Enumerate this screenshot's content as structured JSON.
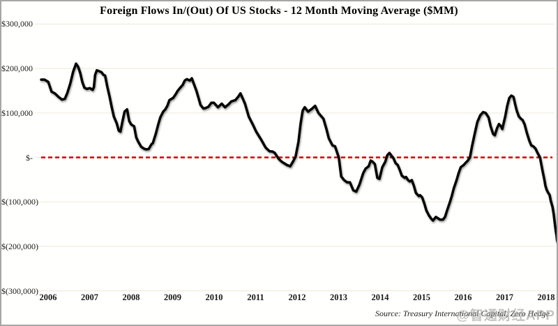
{
  "title": "Foreign Flows In/(Out) Of US Stocks  - 12 Month Moving Average ($MM)",
  "source_note": "Source: Treasury International Capital, Zero Hedge",
  "watermark": "@智通财经APP",
  "colors": {
    "line": "#060606",
    "zero_line": "#d40000",
    "gridline": "#f0ecdd",
    "frame_border": "#a7a7a7",
    "text": "#1a1a1a"
  },
  "chart_data": {
    "type": "line",
    "title": "Foreign Flows In/(Out) Of US Stocks  - 12 Month Moving Average ($MM)",
    "xlabel": "",
    "ylabel": "",
    "grid": true,
    "legend": null,
    "xlim": [
      2005.8,
      2018.45
    ],
    "ylim": [
      -300000,
      300000
    ],
    "x_tick_labels": [
      "2006",
      "2007",
      "2008",
      "2009",
      "2010",
      "2011",
      "2012",
      "2013",
      "2014",
      "2015",
      "2016",
      "2017",
      "2018"
    ],
    "y_ticks": [
      {
        "value": 300000,
        "label": "$300,000"
      },
      {
        "value": 200000,
        "label": "$200,000"
      },
      {
        "value": 100000,
        "label": "$100,000"
      },
      {
        "value": 0,
        "label": "$-"
      },
      {
        "value": -100000,
        "label": "$(100,000)"
      },
      {
        "value": -200000,
        "label": "$(200,000)"
      },
      {
        "value": -300000,
        "label": "$(300,000)"
      }
    ],
    "zero_line": {
      "value": 0,
      "style": "dashed",
      "color": "#d40000"
    },
    "series": [
      {
        "name": "Foreign flows into US stocks, 12-month moving average ($MM)",
        "points": [
          [
            2005.9,
            175000
          ],
          [
            2005.98,
            175000
          ],
          [
            2006.07,
            170000
          ],
          [
            2006.15,
            148000
          ],
          [
            2006.23,
            144000
          ],
          [
            2006.32,
            136000
          ],
          [
            2006.4,
            130000
          ],
          [
            2006.47,
            132000
          ],
          [
            2006.53,
            145000
          ],
          [
            2006.6,
            166000
          ],
          [
            2006.67,
            193000
          ],
          [
            2006.74,
            211000
          ],
          [
            2006.79,
            204000
          ],
          [
            2006.84,
            190000
          ],
          [
            2006.89,
            170000
          ],
          [
            2006.94,
            157000
          ],
          [
            2007.0,
            154000
          ],
          [
            2007.07,
            156000
          ],
          [
            2007.14,
            152000
          ],
          [
            2007.17,
            158000
          ],
          [
            2007.2,
            186000
          ],
          [
            2007.24,
            196000
          ],
          [
            2007.3,
            194000
          ],
          [
            2007.35,
            192000
          ],
          [
            2007.4,
            186000
          ],
          [
            2007.44,
            184000
          ],
          [
            2007.49,
            160000
          ],
          [
            2007.55,
            136000
          ],
          [
            2007.6,
            113000
          ],
          [
            2007.65,
            92000
          ],
          [
            2007.72,
            77000
          ],
          [
            2007.77,
            60000
          ],
          [
            2007.81,
            58000
          ],
          [
            2007.86,
            82000
          ],
          [
            2007.91,
            103000
          ],
          [
            2007.97,
            108000
          ],
          [
            2008.02,
            82000
          ],
          [
            2008.07,
            74000
          ],
          [
            2008.14,
            70000
          ],
          [
            2008.19,
            45000
          ],
          [
            2008.24,
            35000
          ],
          [
            2008.31,
            24000
          ],
          [
            2008.39,
            19000
          ],
          [
            2008.44,
            18000
          ],
          [
            2008.49,
            19000
          ],
          [
            2008.56,
            30000
          ],
          [
            2008.59,
            32000
          ],
          [
            2008.66,
            53000
          ],
          [
            2008.72,
            74000
          ],
          [
            2008.77,
            90000
          ],
          [
            2008.84,
            103000
          ],
          [
            2008.89,
            108000
          ],
          [
            2008.94,
            116000
          ],
          [
            2008.99,
            129000
          ],
          [
            2009.08,
            134000
          ],
          [
            2009.14,
            142000
          ],
          [
            2009.19,
            150000
          ],
          [
            2009.26,
            158000
          ],
          [
            2009.31,
            163000
          ],
          [
            2009.36,
            173000
          ],
          [
            2009.41,
            176000
          ],
          [
            2009.48,
            173000
          ],
          [
            2009.53,
            178000
          ],
          [
            2009.58,
            165000
          ],
          [
            2009.64,
            150000
          ],
          [
            2009.69,
            134000
          ],
          [
            2009.74,
            118000
          ],
          [
            2009.81,
            110000
          ],
          [
            2009.86,
            111000
          ],
          [
            2009.93,
            114000
          ],
          [
            2010.0,
            123000
          ],
          [
            2010.06,
            123000
          ],
          [
            2010.16,
            113000
          ],
          [
            2010.25,
            121000
          ],
          [
            2010.33,
            113000
          ],
          [
            2010.41,
            119000
          ],
          [
            2010.48,
            126000
          ],
          [
            2010.58,
            129000
          ],
          [
            2010.65,
            137000
          ],
          [
            2010.7,
            144000
          ],
          [
            2010.76,
            132000
          ],
          [
            2010.81,
            121000
          ],
          [
            2010.9,
            92000
          ],
          [
            2011.0,
            74000
          ],
          [
            2011.08,
            58000
          ],
          [
            2011.2,
            40000
          ],
          [
            2011.31,
            22000
          ],
          [
            2011.4,
            14000
          ],
          [
            2011.48,
            13000
          ],
          [
            2011.53,
            10000
          ],
          [
            2011.62,
            -3000
          ],
          [
            2011.7,
            -10000
          ],
          [
            2011.82,
            -17000
          ],
          [
            2011.9,
            -20000
          ],
          [
            2011.97,
            -9000
          ],
          [
            2012.03,
            2000
          ],
          [
            2012.1,
            35000
          ],
          [
            2012.15,
            75000
          ],
          [
            2012.2,
            105000
          ],
          [
            2012.25,
            113000
          ],
          [
            2012.33,
            103000
          ],
          [
            2012.43,
            110000
          ],
          [
            2012.5,
            116000
          ],
          [
            2012.58,
            100000
          ],
          [
            2012.7,
            87000
          ],
          [
            2012.77,
            65000
          ],
          [
            2012.83,
            43000
          ],
          [
            2012.92,
            27000
          ],
          [
            2012.98,
            25000
          ],
          [
            2013.07,
            0
          ],
          [
            2013.13,
            -43000
          ],
          [
            2013.2,
            -51000
          ],
          [
            2013.27,
            -56000
          ],
          [
            2013.34,
            -56000
          ],
          [
            2013.42,
            -74000
          ],
          [
            2013.49,
            -77000
          ],
          [
            2013.57,
            -61000
          ],
          [
            2013.66,
            -35000
          ],
          [
            2013.72,
            -25000
          ],
          [
            2013.79,
            -20000
          ],
          [
            2013.84,
            -7000
          ],
          [
            2013.89,
            -10000
          ],
          [
            2013.94,
            -15000
          ],
          [
            2014.0,
            -46000
          ],
          [
            2014.05,
            -48000
          ],
          [
            2014.12,
            -22000
          ],
          [
            2014.19,
            -10000
          ],
          [
            2014.24,
            5000
          ],
          [
            2014.29,
            10000
          ],
          [
            2014.34,
            4000
          ],
          [
            2014.39,
            -2000
          ],
          [
            2014.44,
            -13000
          ],
          [
            2014.49,
            -17000
          ],
          [
            2014.54,
            -28000
          ],
          [
            2014.59,
            -41000
          ],
          [
            2014.66,
            -46000
          ],
          [
            2014.69,
            -44000
          ],
          [
            2014.74,
            -51000
          ],
          [
            2014.78,
            -54000
          ],
          [
            2014.83,
            -51000
          ],
          [
            2014.88,
            -64000
          ],
          [
            2014.93,
            -80000
          ],
          [
            2015.0,
            -87000
          ],
          [
            2015.03,
            -85000
          ],
          [
            2015.08,
            -90000
          ],
          [
            2015.13,
            -103000
          ],
          [
            2015.18,
            -119000
          ],
          [
            2015.24,
            -130000
          ],
          [
            2015.29,
            -137000
          ],
          [
            2015.34,
            -142000
          ],
          [
            2015.41,
            -134000
          ],
          [
            2015.46,
            -137000
          ],
          [
            2015.51,
            -140000
          ],
          [
            2015.58,
            -140000
          ],
          [
            2015.63,
            -134000
          ],
          [
            2015.68,
            -119000
          ],
          [
            2015.74,
            -103000
          ],
          [
            2015.79,
            -88000
          ],
          [
            2015.84,
            -70000
          ],
          [
            2015.91,
            -51000
          ],
          [
            2015.96,
            -35000
          ],
          [
            2016.01,
            -22000
          ],
          [
            2016.08,
            -17000
          ],
          [
            2016.13,
            -12000
          ],
          [
            2016.18,
            -7000
          ],
          [
            2016.23,
            0
          ],
          [
            2016.28,
            25000
          ],
          [
            2016.35,
            55000
          ],
          [
            2016.41,
            80000
          ],
          [
            2016.48,
            95000
          ],
          [
            2016.55,
            102000
          ],
          [
            2016.61,
            100000
          ],
          [
            2016.68,
            90000
          ],
          [
            2016.73,
            70000
          ],
          [
            2016.79,
            53000
          ],
          [
            2016.83,
            50000
          ],
          [
            2016.88,
            65000
          ],
          [
            2016.93,
            75000
          ],
          [
            2016.98,
            70000
          ],
          [
            2017.01,
            64000
          ],
          [
            2017.08,
            92000
          ],
          [
            2017.13,
            116000
          ],
          [
            2017.18,
            134000
          ],
          [
            2017.23,
            139000
          ],
          [
            2017.28,
            136000
          ],
          [
            2017.33,
            116000
          ],
          [
            2017.36,
            105000
          ],
          [
            2017.41,
            92000
          ],
          [
            2017.46,
            87000
          ],
          [
            2017.5,
            84000
          ],
          [
            2017.55,
            74000
          ],
          [
            2017.6,
            56000
          ],
          [
            2017.66,
            38000
          ],
          [
            2017.71,
            27000
          ],
          [
            2017.76,
            25000
          ],
          [
            2017.81,
            20000
          ],
          [
            2017.86,
            10000
          ],
          [
            2017.92,
            0
          ],
          [
            2017.95,
            -15000
          ],
          [
            2017.98,
            -30000
          ],
          [
            2018.02,
            -48000
          ],
          [
            2018.05,
            -64000
          ],
          [
            2018.08,
            -73000
          ],
          [
            2018.12,
            -80000
          ],
          [
            2018.15,
            -84000
          ],
          [
            2018.18,
            -98000
          ],
          [
            2018.22,
            -111000
          ],
          [
            2018.25,
            -128000
          ],
          [
            2018.28,
            -152000
          ],
          [
            2018.3,
            -165000
          ],
          [
            2018.32,
            -176000
          ],
          [
            2018.33,
            -186000
          ],
          [
            2018.35,
            -193000
          ],
          [
            2018.37,
            -197000
          ]
        ]
      }
    ]
  }
}
